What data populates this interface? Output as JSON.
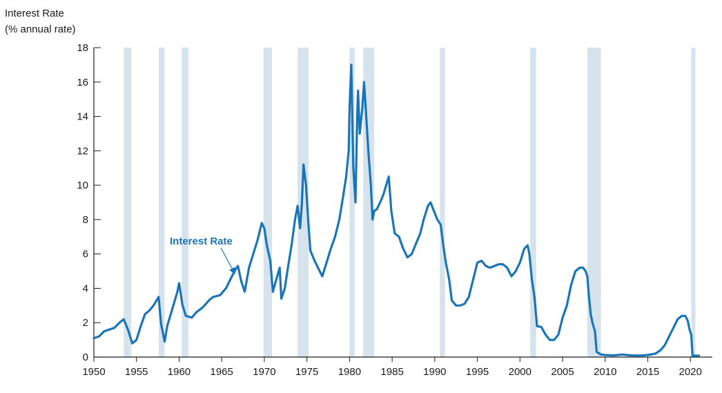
{
  "chart_data": {
    "type": "line",
    "ylabel_line1": "Interest Rate",
    "ylabel_line2": "(% annual rate)",
    "xlim": [
      1950,
      2021.6
    ],
    "ylim": [
      0,
      18
    ],
    "xticks": [
      1950,
      1955,
      1960,
      1965,
      1970,
      1975,
      1980,
      1985,
      1990,
      1995,
      2000,
      2005,
      2010,
      2015,
      2020
    ],
    "yticks": [
      0,
      2,
      4,
      6,
      8,
      10,
      12,
      14,
      16,
      18
    ],
    "grid": false,
    "recession_color": "#d7e3ec",
    "series_color": "#1a75b8",
    "recessions": [
      [
        1953.5,
        1954.4
      ],
      [
        1957.6,
        1958.3
      ],
      [
        1960.3,
        1961.1
      ],
      [
        1969.9,
        1970.9
      ],
      [
        1973.9,
        1975.2
      ],
      [
        1980.0,
        1980.6
      ],
      [
        1981.6,
        1982.9
      ],
      [
        1990.6,
        1991.2
      ],
      [
        2001.2,
        2001.9
      ],
      [
        2007.9,
        2009.5
      ],
      [
        2020.1,
        2020.4
      ]
    ],
    "series": [
      {
        "name": "Interest Rate",
        "x": [
          1950.0,
          1950.6,
          1951.2,
          1951.8,
          1952.4,
          1953.0,
          1953.5,
          1954.0,
          1954.5,
          1955.0,
          1955.5,
          1956.0,
          1956.5,
          1957.0,
          1957.6,
          1957.9,
          1958.3,
          1958.6,
          1959.2,
          1959.8,
          1960.0,
          1960.4,
          1960.8,
          1961.5,
          1962.0,
          1962.8,
          1963.5,
          1964.0,
          1964.8,
          1965.5,
          1966.0,
          1966.5,
          1966.9,
          1967.3,
          1967.7,
          1968.2,
          1968.7,
          1969.2,
          1969.7,
          1970.0,
          1970.3,
          1970.7,
          1971.0,
          1971.4,
          1971.8,
          1972.0,
          1972.4,
          1972.8,
          1973.2,
          1973.6,
          1973.9,
          1974.2,
          1974.4,
          1974.6,
          1974.9,
          1975.1,
          1975.4,
          1975.9,
          1976.3,
          1976.8,
          1977.3,
          1977.8,
          1978.3,
          1978.8,
          1979.3,
          1979.6,
          1979.9,
          1980.0,
          1980.2,
          1980.45,
          1980.7,
          1980.9,
          1981.0,
          1981.2,
          1981.5,
          1981.7,
          1981.9,
          1982.2,
          1982.5,
          1982.7,
          1982.9,
          1983.2,
          1983.6,
          1984.0,
          1984.3,
          1984.6,
          1984.9,
          1985.3,
          1985.8,
          1986.3,
          1986.8,
          1987.3,
          1987.8,
          1988.3,
          1988.7,
          1989.2,
          1989.5,
          1989.9,
          1990.3,
          1990.7,
          1991.0,
          1991.3,
          1991.7,
          1992.0,
          1992.5,
          1993.0,
          1993.5,
          1994.0,
          1994.5,
          1995.0,
          1995.5,
          1996.0,
          1996.5,
          1997.0,
          1997.5,
          1998.0,
          1998.5,
          1999.0,
          1999.5,
          2000.0,
          2000.5,
          2000.9,
          2001.1,
          2001.4,
          2001.7,
          2002.0,
          2002.5,
          2003.0,
          2003.5,
          2004.0,
          2004.5,
          2005.0,
          2005.5,
          2006.0,
          2006.5,
          2007.0,
          2007.4,
          2007.7,
          2007.9,
          2008.1,
          2008.3,
          2008.5,
          2008.8,
          2009.0,
          2009.5,
          2010.0,
          2011.0,
          2012.0,
          2013.0,
          2014.0,
          2015.0,
          2015.9,
          2016.5,
          2017.0,
          2017.5,
          2018.0,
          2018.5,
          2019.0,
          2019.4,
          2019.7,
          2019.9,
          2020.1,
          2020.25,
          2020.5,
          2021.0
        ],
        "y": [
          1.1,
          1.2,
          1.5,
          1.6,
          1.7,
          2.0,
          2.2,
          1.6,
          0.8,
          1.0,
          1.8,
          2.5,
          2.7,
          3.0,
          3.5,
          1.9,
          0.9,
          1.8,
          2.8,
          3.8,
          4.3,
          3.0,
          2.4,
          2.3,
          2.6,
          2.9,
          3.3,
          3.5,
          3.6,
          4.0,
          4.5,
          5.0,
          5.3,
          4.4,
          3.8,
          5.2,
          6.0,
          6.8,
          7.8,
          7.5,
          6.5,
          5.6,
          3.8,
          4.5,
          5.2,
          3.4,
          4.0,
          5.3,
          6.5,
          8.0,
          8.8,
          7.5,
          8.9,
          11.2,
          10.0,
          8.3,
          6.2,
          5.6,
          5.2,
          4.7,
          5.5,
          6.3,
          7.0,
          8.0,
          9.5,
          10.5,
          12.0,
          14.5,
          17.0,
          11.0,
          9.0,
          14.0,
          15.5,
          13.0,
          14.5,
          16.0,
          14.5,
          12.0,
          10.0,
          8.0,
          8.5,
          8.6,
          9.0,
          9.5,
          10.0,
          10.5,
          8.5,
          7.2,
          7.0,
          6.3,
          5.8,
          6.0,
          6.6,
          7.2,
          8.0,
          8.8,
          9.0,
          8.5,
          8.0,
          7.7,
          6.5,
          5.5,
          4.5,
          3.3,
          3.0,
          3.0,
          3.1,
          3.5,
          4.5,
          5.5,
          5.6,
          5.3,
          5.2,
          5.3,
          5.4,
          5.4,
          5.2,
          4.7,
          5.0,
          5.5,
          6.3,
          6.5,
          6.0,
          4.5,
          3.5,
          1.8,
          1.75,
          1.3,
          1.0,
          1.0,
          1.3,
          2.3,
          3.0,
          4.2,
          5.0,
          5.2,
          5.2,
          5.0,
          4.7,
          3.5,
          2.5,
          2.0,
          1.5,
          0.3,
          0.15,
          0.12,
          0.1,
          0.15,
          0.1,
          0.09,
          0.12,
          0.2,
          0.4,
          0.7,
          1.2,
          1.7,
          2.2,
          2.4,
          2.4,
          2.1,
          1.6,
          1.3,
          0.08,
          0.08,
          0.08
        ]
      }
    ],
    "annotation": {
      "label": "Interest Rate",
      "arrow_to": [
        1966.5,
        4.9
      ]
    }
  }
}
